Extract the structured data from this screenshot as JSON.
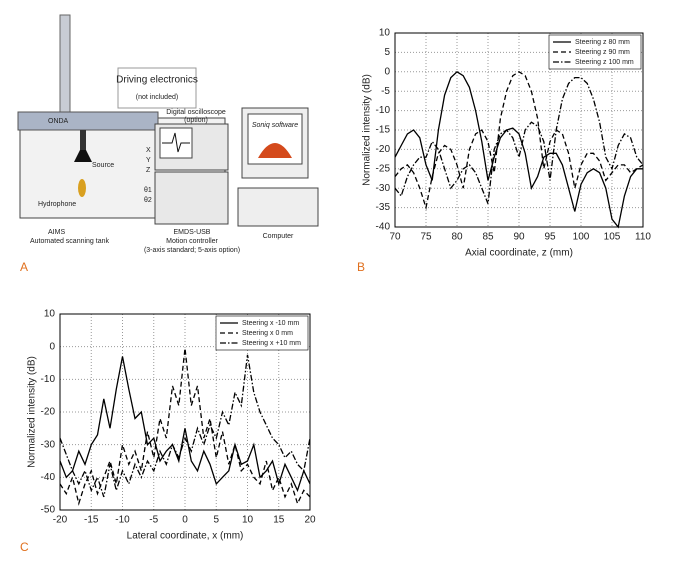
{
  "panel_labels": [
    "A",
    "B",
    "C"
  ],
  "diagram": {
    "logo": "ONDA",
    "driving_electronics": "Driving electronics",
    "not_included": "(not included)",
    "oscilloscope": "Digital oscilloscope",
    "oscilloscope_option": "(option)",
    "software": "Soniq software",
    "source": "Source",
    "hydrophone": "Hydrophone",
    "axes": [
      "X",
      "Y",
      "Z",
      "θ1",
      "θ2"
    ],
    "aims": "AIMS",
    "aims_caption": "Automated scanning tank",
    "controller": "EMDS-USB",
    "controller_caption": "Motion controller",
    "controller_note": "(3-axis standard; 5-axis option)",
    "computer": "Computer"
  },
  "chart_data": [
    {
      "type": "line",
      "xlabel": "Axial coordinate, z (mm)",
      "ylabel": "Normalized intensity (dB)",
      "xlim": [
        70,
        110
      ],
      "xticks": [
        70,
        75,
        80,
        85,
        90,
        95,
        100,
        105,
        110
      ],
      "ylim": [
        -40,
        10
      ],
      "yticks": [
        -40,
        -35,
        -30,
        -25,
        -20,
        -15,
        -10,
        -5,
        0,
        5,
        10
      ],
      "grid": true,
      "legend": "upper right",
      "x": [
        70,
        71,
        72,
        73,
        74,
        75,
        76,
        77,
        78,
        79,
        80,
        81,
        82,
        83,
        84,
        85,
        86,
        87,
        88,
        89,
        90,
        91,
        92,
        93,
        94,
        95,
        96,
        97,
        98,
        99,
        100,
        101,
        102,
        103,
        104,
        105,
        106,
        107,
        108,
        109,
        110
      ],
      "series": [
        {
          "name": "Steering z 80 mm",
          "color": "#000000",
          "dash": "solid",
          "values": [
            -22,
            -19,
            -16,
            -15,
            -17,
            -24,
            -28,
            -15,
            -6,
            -1.5,
            0,
            -1,
            -4,
            -10,
            -18,
            -28,
            -22,
            -17,
            -15,
            -14.5,
            -16,
            -21,
            -30,
            -27,
            -22,
            -21,
            -21,
            -24,
            -30,
            -36,
            -29,
            -26,
            -25,
            -26,
            -30,
            -38,
            -40,
            -32,
            -27,
            -25,
            -25
          ]
        },
        {
          "name": "Steering z 90 mm",
          "color": "#000000",
          "dash": "dashed",
          "values": [
            -27,
            -25,
            -24,
            -26,
            -30,
            -35,
            -27,
            -21,
            -19,
            -20,
            -24,
            -30,
            -20,
            -16,
            -15,
            -18,
            -26,
            -12,
            -5,
            -1,
            0,
            -1,
            -5,
            -12,
            -25,
            -18,
            -15,
            -16,
            -21,
            -30,
            -24,
            -21,
            -21,
            -23,
            -28,
            -26,
            -24,
            -24,
            -26,
            -25,
            -24
          ]
        },
        {
          "name": "Steering z 100 mm",
          "color": "#000000",
          "dash": "dashdot",
          "values": [
            -30,
            -32,
            -27,
            -24,
            -22,
            -22,
            -18,
            -20,
            -25,
            -30,
            -28,
            -25,
            -24,
            -26,
            -30,
            -34,
            -20,
            -16,
            -15,
            -17,
            -22,
            -15,
            -13,
            -14,
            -18,
            -28,
            -15,
            -7,
            -3,
            -1.5,
            -1.5,
            -3,
            -7,
            -13,
            -22,
            -25,
            -19,
            -16,
            -17,
            -22,
            -24
          ]
        }
      ]
    },
    {
      "type": "line",
      "xlabel": "Lateral coordinate, x (mm)",
      "ylabel": "Normalized intensity (dB)",
      "xlim": [
        -20,
        20
      ],
      "xticks": [
        -20,
        -15,
        -10,
        -5,
        0,
        5,
        10,
        15,
        20
      ],
      "ylim": [
        -50,
        10
      ],
      "yticks": [
        -50,
        -40,
        -30,
        -20,
        -10,
        0,
        10
      ],
      "grid": true,
      "legend": "upper right",
      "x": [
        -20,
        -19,
        -18,
        -17,
        -16,
        -15,
        -14,
        -13,
        -12,
        -11,
        -10,
        -9,
        -8,
        -7,
        -6,
        -5,
        -4,
        -3,
        -2,
        -1,
        0,
        1,
        2,
        3,
        4,
        5,
        6,
        7,
        8,
        9,
        10,
        11,
        12,
        13,
        14,
        15,
        16,
        17,
        18,
        19,
        20
      ],
      "series": [
        {
          "name": "Steering x -10 mm",
          "color": "#000000",
          "dash": "solid",
          "values": [
            -35,
            -40,
            -38,
            -32,
            -36,
            -30,
            -27,
            -16,
            -25,
            -13,
            -3,
            -13,
            -22,
            -20,
            -30,
            -28,
            -35,
            -32,
            -30,
            -35,
            -25,
            -35,
            -38,
            -32,
            -36,
            -42,
            -40,
            -38,
            -30,
            -36,
            -35,
            -30,
            -40,
            -38,
            -35,
            -42,
            -36,
            -40,
            -44,
            -38,
            -42
          ]
        },
        {
          "name": "Steering x 0 mm",
          "color": "#000000",
          "dash": "dashed",
          "values": [
            -42,
            -45,
            -40,
            -48,
            -42,
            -38,
            -45,
            -40,
            -35,
            -42,
            -30,
            -36,
            -32,
            -38,
            -26,
            -34,
            -22,
            -28,
            -12,
            -18,
            -0.5,
            -18,
            -12,
            -28,
            -22,
            -34,
            -26,
            -36,
            -30,
            -38,
            -36,
            -40,
            -42,
            -35,
            -44,
            -40,
            -46,
            -42,
            -48,
            -44,
            -46
          ]
        },
        {
          "name": "Steering x +10 mm",
          "color": "#000000",
          "dash": "dashdot",
          "values": [
            -28,
            -33,
            -38,
            -42,
            -38,
            -44,
            -40,
            -46,
            -36,
            -44,
            -38,
            -42,
            -36,
            -40,
            -35,
            -38,
            -32,
            -36,
            -30,
            -34,
            -28,
            -32,
            -25,
            -30,
            -24,
            -28,
            -20,
            -24,
            -14,
            -18,
            -2.5,
            -14,
            -20,
            -24,
            -28,
            -30,
            -34,
            -32,
            -36,
            -38,
            -28
          ]
        }
      ]
    }
  ]
}
